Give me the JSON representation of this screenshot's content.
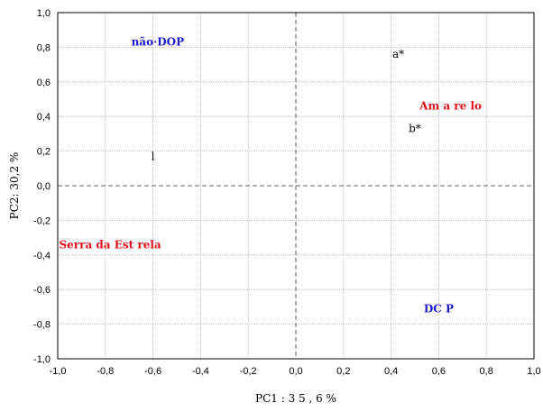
{
  "chart_data": {
    "type": "scatter",
    "title": "",
    "xlabel": "PC1 : 3 5 , 6  %",
    "ylabel": "PC2: 30,2 %",
    "xlim": [
      -1.0,
      1.0
    ],
    "ylim": [
      -1.0,
      1.0
    ],
    "x_ticks": [
      -1.0,
      -0.8,
      -0.6,
      -0.4,
      -0.2,
      0.0,
      0.2,
      0.4,
      0.6,
      0.8,
      1.0
    ],
    "y_ticks": [
      -1.0,
      -0.8,
      -0.6,
      -0.4,
      -0.2,
      0.0,
      0.2,
      0.4,
      0.6,
      0.8,
      1.0
    ],
    "x_tick_labels": [
      "-1,0",
      "-0,8",
      "-0,6",
      "-0,4",
      "-0,2",
      "0,0",
      "0,2",
      "0,4",
      "0,6",
      "0,8",
      "1,0"
    ],
    "y_tick_labels": [
      "-1,0",
      "-0,8",
      "-0,6",
      "-0,4",
      "-0,2",
      "0,0",
      "0,2",
      "0,4",
      "0,6",
      "0,8",
      "1,0"
    ],
    "grid": true,
    "zero_lines": "dashed",
    "points": [
      {
        "label": "a*",
        "x": 0.43,
        "y": 0.76,
        "color": "black"
      },
      {
        "label": "b*",
        "x": 0.5,
        "y": 0.33,
        "color": "black"
      },
      {
        "label": "l",
        "x": -0.6,
        "y": 0.17,
        "color": "black"
      },
      {
        "label": "não·DOP",
        "x": -0.58,
        "y": 0.83,
        "color": "blue"
      },
      {
        "label": "DC P",
        "x": 0.6,
        "y": -0.71,
        "color": "blue"
      },
      {
        "label": "Am a re lo",
        "x": 0.65,
        "y": 0.46,
        "color": "red"
      },
      {
        "label": "Serra   da  Est rela",
        "x": -0.78,
        "y": -0.34,
        "color": "red"
      }
    ],
    "colors": {
      "black": "#000000",
      "blue": "#1a1ad0",
      "red": "#e0101a",
      "grid": "#b0b0b0",
      "zero_line": "#808080"
    }
  }
}
